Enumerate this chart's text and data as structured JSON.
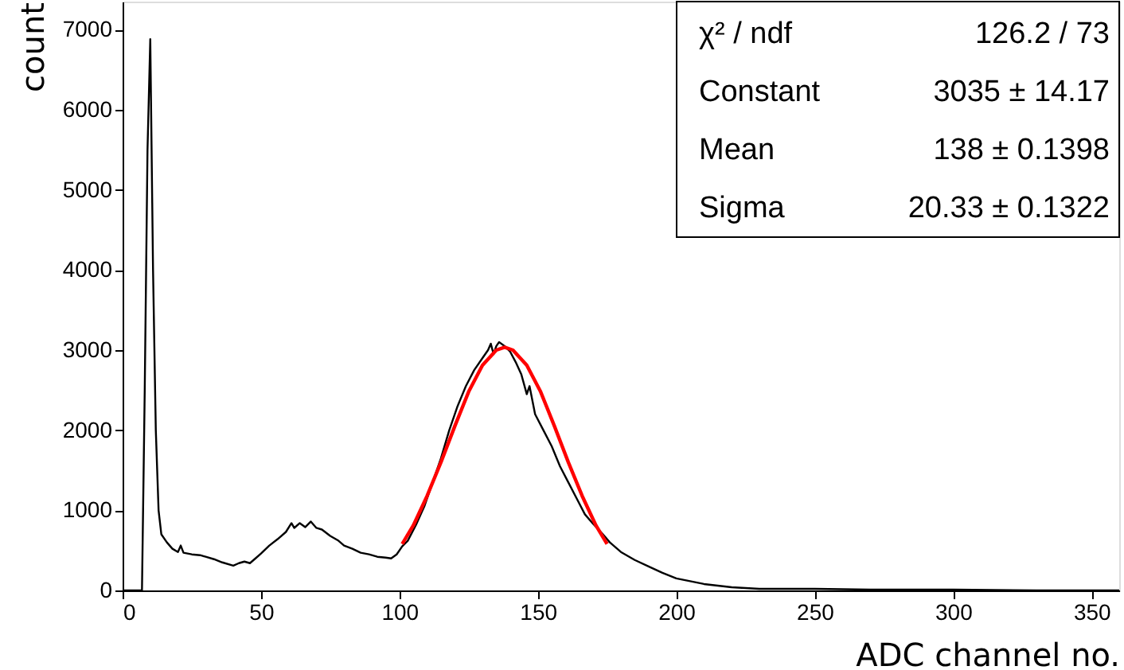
{
  "chart_data": {
    "type": "line",
    "xlabel": "ADC channel no.",
    "ylabel": "count",
    "xlim": [
      0,
      360
    ],
    "xticks": [
      0,
      50,
      100,
      150,
      200,
      250,
      300,
      350
    ],
    "ylim": [
      0,
      7350
    ],
    "yticks": [
      0,
      1000,
      2000,
      3000,
      4000,
      5000,
      6000,
      7000
    ],
    "grid": false,
    "marker": "none",
    "line_style": "solid",
    "annotations": [
      "χ² / ndf",
      "126.2 / 73",
      "Constant",
      "3035 ± 14.17",
      "Mean",
      "138 ± 0.1398",
      "Sigma",
      "20.33 ± 0.1322"
    ],
    "series": [
      {
        "color": "#000000",
        "x": [
          0,
          7,
          8,
          9,
          10,
          11,
          12,
          13,
          14,
          16,
          18,
          20,
          21,
          22,
          25,
          28,
          30,
          33,
          36,
          40,
          42,
          44,
          46,
          48,
          50,
          53,
          56,
          59,
          61,
          62,
          64,
          66,
          68,
          70,
          72,
          75,
          78,
          80,
          83,
          86,
          89,
          92,
          95,
          97,
          99,
          101,
          103,
          106,
          109,
          112,
          115,
          118,
          121,
          124,
          127,
          130,
          132,
          133,
          134,
          135,
          136,
          138,
          140,
          142,
          144,
          146,
          147,
          149,
          152,
          155,
          158,
          161,
          164,
          167,
          170,
          173,
          176,
          180,
          185,
          190,
          195,
          200,
          210,
          220,
          230,
          250,
          270,
          300,
          330,
          360
        ],
        "values": [
          0,
          0,
          2500,
          5500,
          6880,
          4000,
          2000,
          1000,
          700,
          600,
          520,
          480,
          560,
          470,
          450,
          440,
          420,
          390,
          350,
          310,
          340,
          360,
          340,
          400,
          460,
          560,
          640,
          730,
          840,
          780,
          840,
          790,
          860,
          780,
          760,
          680,
          620,
          560,
          520,
          470,
          450,
          420,
          410,
          400,
          450,
          550,
          620,
          820,
          1050,
          1350,
          1650,
          2000,
          2300,
          2550,
          2750,
          2900,
          3000,
          3080,
          2950,
          3050,
          3100,
          3050,
          2980,
          2850,
          2700,
          2450,
          2550,
          2200,
          2000,
          1800,
          1550,
          1350,
          1150,
          950,
          830,
          720,
          600,
          480,
          380,
          300,
          220,
          150,
          80,
          40,
          20,
          20,
          10,
          10,
          0,
          0
        ]
      },
      {
        "color": "#ff0000",
        "x": [
          101,
          105,
          110,
          115,
          120,
          125,
          130,
          135,
          138,
          141,
          146,
          151,
          156,
          161,
          166,
          171,
          175
        ],
        "values": [
          580,
          810,
          1180,
          1600,
          2050,
          2480,
          2810,
          3000,
          3035,
          3000,
          2810,
          2480,
          2050,
          1600,
          1180,
          810,
          580
        ]
      }
    ]
  }
}
